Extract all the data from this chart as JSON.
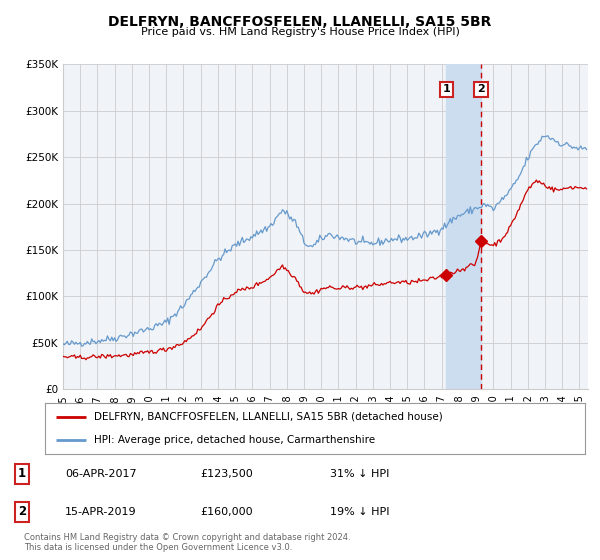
{
  "title": "DELFRYN, BANCFFOSFELEN, LLANELLI, SA15 5BR",
  "subtitle": "Price paid vs. HM Land Registry's House Price Index (HPI)",
  "legend_red": "DELFRYN, BANCFFOSFELEN, LLANELLI, SA15 5BR (detached house)",
  "legend_blue": "HPI: Average price, detached house, Carmarthenshire",
  "transaction1_date": "06-APR-2017",
  "transaction1_price": 123500,
  "transaction1_hpi_diff": "31% ↓ HPI",
  "transaction2_date": "15-APR-2019",
  "transaction2_price": 160000,
  "transaction2_hpi_diff": "19% ↓ HPI",
  "footer1": "Contains HM Land Registry data © Crown copyright and database right 2024.",
  "footer2": "This data is licensed under the Open Government Licence v3.0.",
  "ylim": [
    0,
    350000
  ],
  "yticks": [
    0,
    50000,
    100000,
    150000,
    200000,
    250000,
    300000,
    350000
  ],
  "ytick_labels": [
    "£0",
    "£50K",
    "£100K",
    "£150K",
    "£200K",
    "£250K",
    "£300K",
    "£350K"
  ],
  "xlim_start": 1995.0,
  "xlim_end": 2025.5,
  "xticks": [
    1995,
    1996,
    1997,
    1998,
    1999,
    2000,
    2001,
    2002,
    2003,
    2004,
    2005,
    2006,
    2007,
    2008,
    2009,
    2010,
    2011,
    2012,
    2013,
    2014,
    2015,
    2016,
    2017,
    2018,
    2019,
    2020,
    2021,
    2022,
    2023,
    2024,
    2025
  ],
  "transaction1_year": 2017.27,
  "transaction2_year": 2019.29,
  "red_color": "#cc0000",
  "blue_color": "#6699cc",
  "bg_color": "#f0f4f8",
  "shade_color": "#ccddf0",
  "vline_color": "#cc0000",
  "grid_color": "#cccccc",
  "box_color": "#cc2222",
  "marker1_value": 123500,
  "marker2_value": 160000
}
